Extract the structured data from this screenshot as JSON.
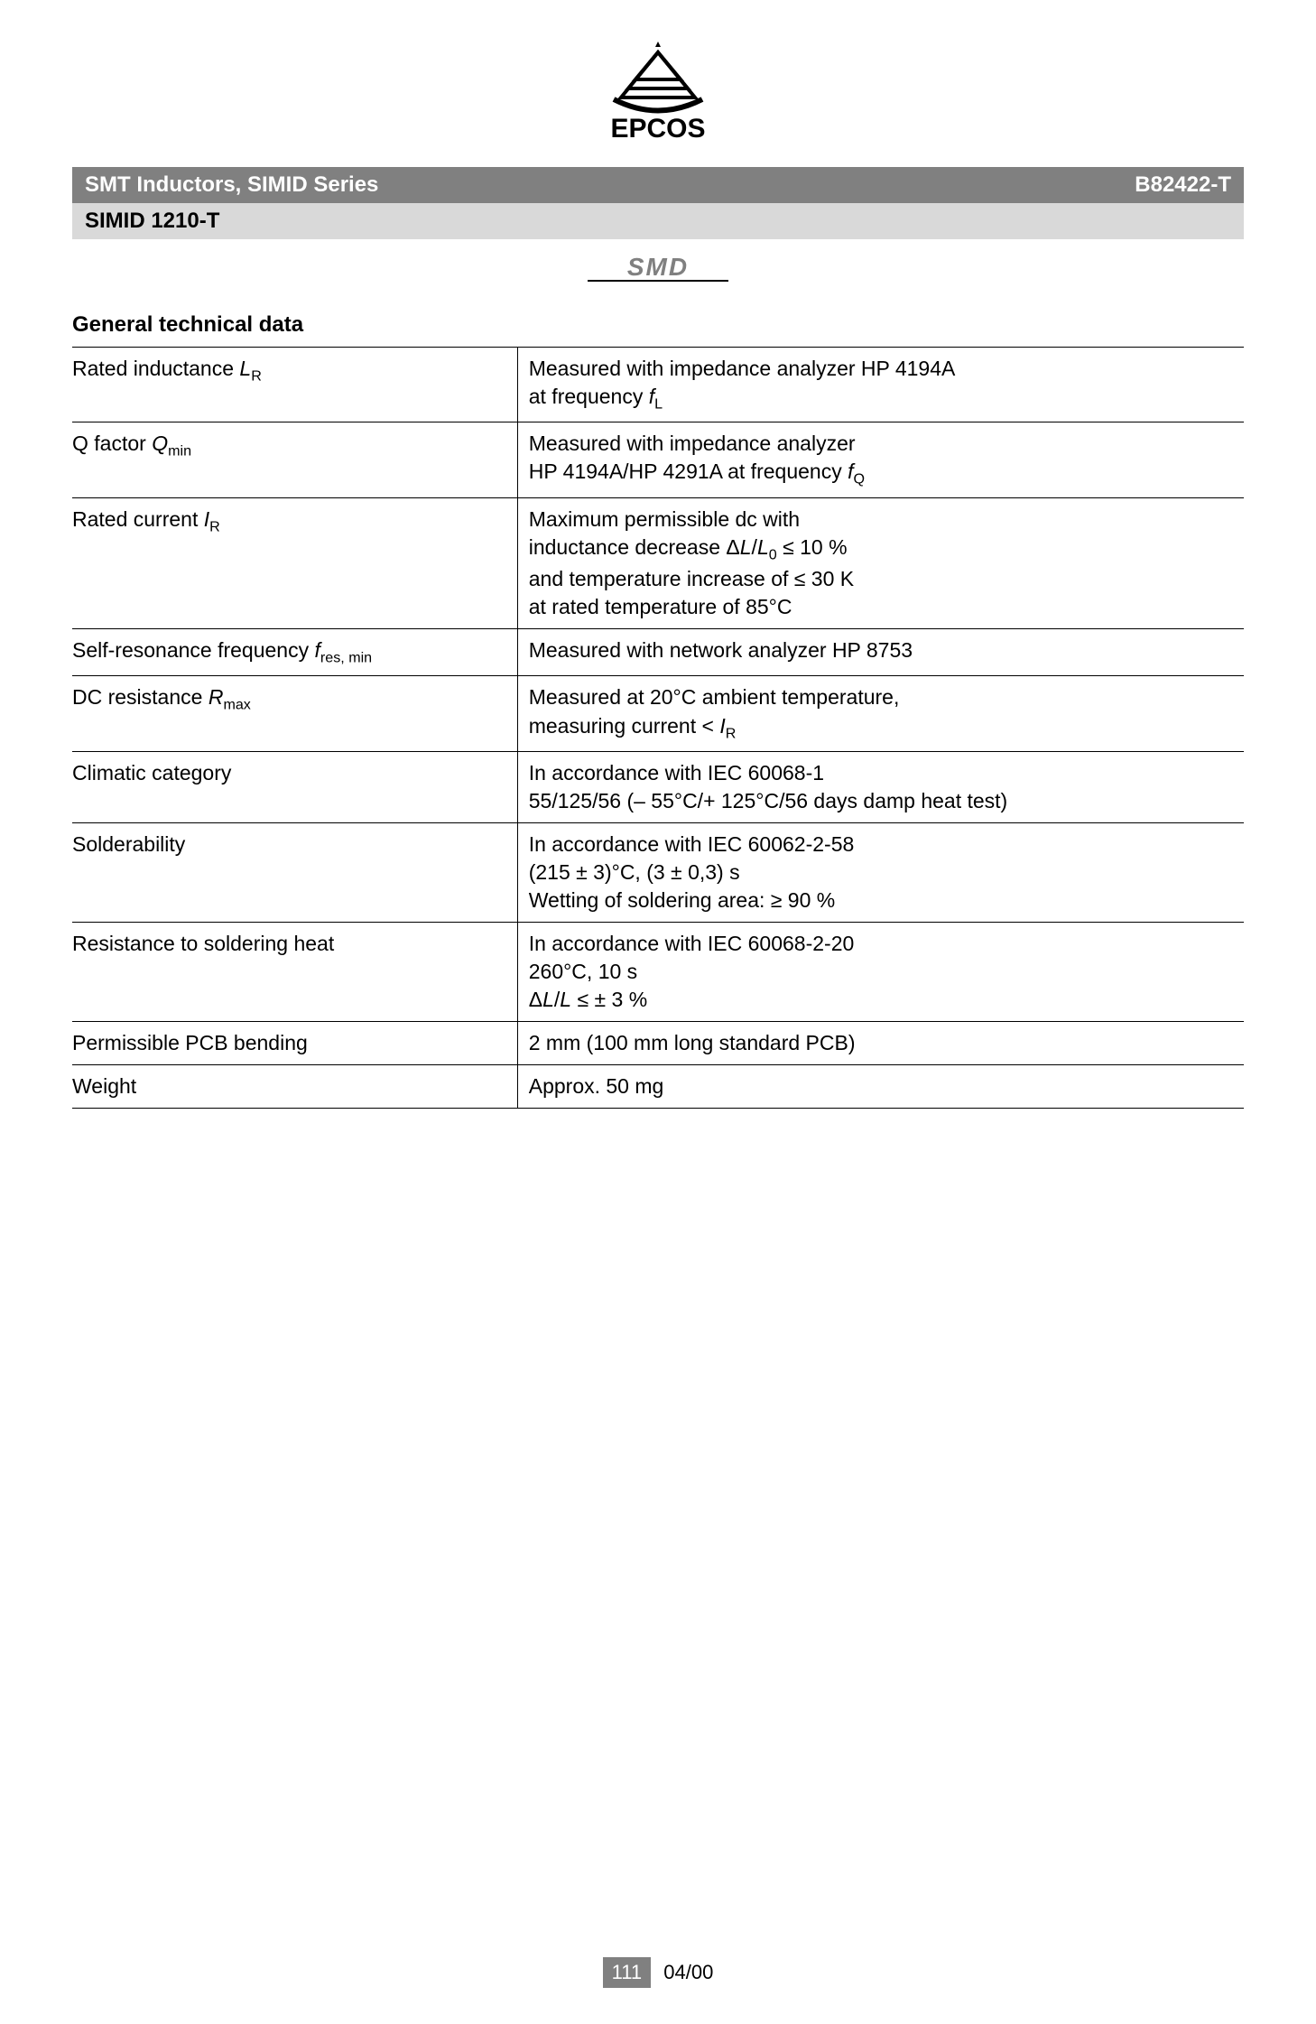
{
  "header": {
    "title_left": "SMT Inductors, SIMID Series",
    "title_right": "B82422-T",
    "subtitle": "SIMID 1210-T"
  },
  "section_title": "General technical data",
  "rows": [
    {
      "param_html": "Rated inductance <span class='ital'>L</span><sub>R</sub>",
      "value_html": "Measured with impedance analyzer HP 4194A<br>at frequency <span class='ital'>f</span><sub>L</sub>"
    },
    {
      "param_html": "Q factor <span class='ital'>Q</span><sub>min</sub>",
      "value_html": "Measured with impedance analyzer<br>HP 4194A/HP 4291A at frequency <span class='ital'>f</span><sub>Q</sub>"
    },
    {
      "param_html": "Rated current <span class='ital'>I</span><sub>R</sub>",
      "value_html": "Maximum permissible dc with<br>inductance decrease Δ<span class='ital'>L</span>/<span class='ital'>L</span><sub>0</sub> ≤ 10 %<br>and temperature increase of ≤ 30 K<br>at rated temperature of 85°C"
    },
    {
      "param_html": "Self-resonance frequency <span class='ital'>f</span><sub>res, min</sub>",
      "value_html": "Measured with network analyzer HP 8753"
    },
    {
      "param_html": "DC resistance <span class='ital'>R</span><sub>max</sub>",
      "value_html": "Measured at 20°C ambient temperature,<br>measuring current &lt; <span class='ital'>I</span><sub>R</sub>"
    },
    {
      "param_html": "Climatic category",
      "value_html": "In accordance with IEC 60068-1<br>55/125/56 (– 55°C/+ 125°C/56 days damp heat test)"
    },
    {
      "param_html": "Solderability",
      "value_html": "In accordance with IEC 60062-2-58<br>(215 ± 3)°C, (3 ± 0,3) s<br>Wetting of soldering area: ≥ 90 %"
    },
    {
      "param_html": "Resistance to soldering heat",
      "value_html": "In accordance with IEC 60068-2-20<br>260°C, 10 s<br>Δ<span class='ital'>L</span>/<span class='ital'>L</span> ≤ ± 3 %"
    },
    {
      "param_html": "Permissible PCB bending",
      "value_html": "2 mm (100 mm long standard PCB)"
    },
    {
      "param_html": "Weight",
      "value_html": "Approx. 50 mg"
    }
  ],
  "footer": {
    "page": "111",
    "date": "04/00"
  },
  "colors": {
    "header_bg": "#808080",
    "header_fg": "#ffffff",
    "subheader_bg": "#d9d9d9",
    "text": "#000000",
    "border": "#000000"
  }
}
